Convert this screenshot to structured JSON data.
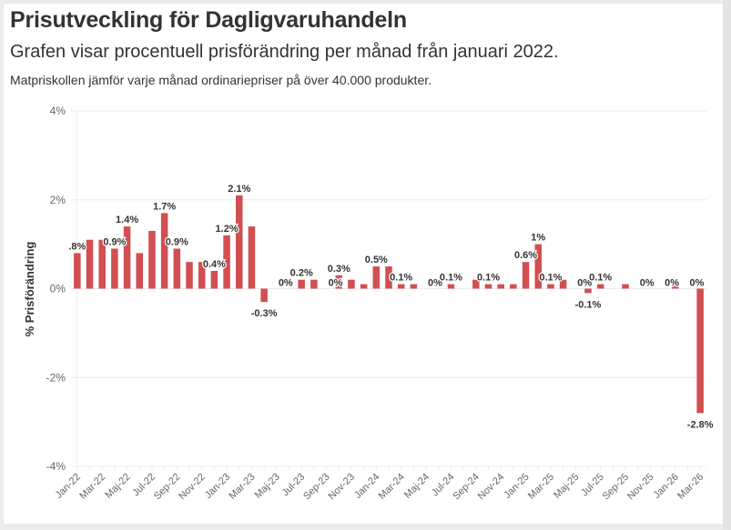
{
  "header": {
    "title": "Prisutveckling för Dagligvaruhandeln",
    "subtitle": "Grafen visar procentuell prisförändring per månad från januari 2022.",
    "note": "Matpriskollen jämför varje månad ordinariepriser på över 40.000 produkter."
  },
  "colors": {
    "bar": "#d14f52",
    "grid": "#ebebeb",
    "text": "#333333",
    "axis_text": "#666666"
  },
  "chart_data": {
    "type": "bar",
    "title": "Prisutveckling för Dagligvaruhandeln",
    "xlabel": "",
    "ylabel": "% Prisförändring",
    "ylim": [
      -4,
      4
    ],
    "yticks": [
      4,
      2,
      0,
      -2,
      -4
    ],
    "ytick_labels": [
      "4%",
      "2%",
      "0%",
      "-2%",
      "-4%"
    ],
    "grid": true,
    "categories": [
      "Jan-22",
      "Feb-22",
      "Mar-22",
      "Apr-22",
      "Maj-22",
      "Jun-22",
      "Jul-22",
      "Aug-22",
      "Sep-22",
      "Okt-22",
      "Nov-22",
      "Dec-22",
      "Jan-23",
      "Feb-23",
      "Mar-23",
      "Apr-23",
      "Maj-23",
      "Jun-23",
      "Jul-23",
      "Aug-23",
      "Sep-23",
      "Okt-23",
      "Nov-23",
      "Dec-23",
      "Jan-24",
      "Feb-24",
      "Mar-24",
      "Apr-24",
      "Maj-24",
      "Jun-24",
      "Jul-24",
      "Aug-24",
      "Sep-24",
      "Okt-24",
      "Nov-24",
      "Dec-24",
      "Jan-25",
      "Feb-25",
      "Mar-25",
      "Apr-25",
      "Maj-25",
      "Jun-25",
      "Jul-25",
      "Aug-25",
      "Sep-25",
      "Okt-25",
      "Nov-25",
      "Dec-25",
      "Jan-26",
      "Feb-26",
      "Mar-26"
    ],
    "xtick_labels": [
      "Jan-22",
      "Mar-22",
      "Maj-22",
      "Jul-22",
      "Sep-22",
      "Nov-22",
      "Jan-23",
      "Mar-23",
      "Maj-23",
      "Jul-23",
      "Sep-23",
      "Nov-23",
      "Jan-24",
      "Mar-24",
      "Maj-24",
      "Jul-24",
      "Sep-24",
      "Nov-24",
      "Jan-25",
      "Mar-25",
      "Maj-25",
      "Jul-25",
      "Sep-25",
      "Nov-25",
      "Jan-26",
      "Mar-26"
    ],
    "values": [
      0.8,
      1.1,
      1.1,
      0.9,
      1.4,
      0.8,
      1.3,
      1.7,
      0.9,
      0.6,
      0.6,
      0.4,
      1.2,
      2.1,
      1.4,
      -0.3,
      0,
      0,
      0.2,
      0.2,
      0,
      0.3,
      0.2,
      0.1,
      0.5,
      0.5,
      0.1,
      0.1,
      0,
      0,
      0.1,
      0,
      0.2,
      0.1,
      0.1,
      0.1,
      0.6,
      1.0,
      0.1,
      0.2,
      0,
      -0.1,
      0.1,
      0,
      0.1,
      0,
      0,
      0,
      0.1,
      0,
      -2.8
    ],
    "data_labels": [
      {
        "index": 0,
        "text": ".8%"
      },
      {
        "index": 3,
        "text": "0.9%"
      },
      {
        "index": 4,
        "text": "1.4%"
      },
      {
        "index": 7,
        "text": "1.7%"
      },
      {
        "index": 8,
        "text": "0.9%"
      },
      {
        "index": 11,
        "text": "0.4%"
      },
      {
        "index": 12,
        "text": "1.2%"
      },
      {
        "index": 13,
        "text": "2.1%"
      },
      {
        "index": 15,
        "text": "-0.3%"
      },
      {
        "index": 16,
        "text": "0%"
      },
      {
        "index": 18,
        "text": "0.2%"
      },
      {
        "index": 20,
        "text": "0%"
      },
      {
        "index": 21,
        "text": "0.3%"
      },
      {
        "index": 24,
        "text": "0.5%"
      },
      {
        "index": 26,
        "text": "0.1%"
      },
      {
        "index": 28,
        "text": "0%"
      },
      {
        "index": 30,
        "text": "0.1%"
      },
      {
        "index": 33,
        "text": "0.1%"
      },
      {
        "index": 36,
        "text": "0.6%"
      },
      {
        "index": 37,
        "text": "1%"
      },
      {
        "index": 38,
        "text": "0.1%"
      },
      {
        "index": 40,
        "text": "0%"
      },
      {
        "index": 41,
        "text": "-0.1%"
      },
      {
        "index": 42,
        "text": "0.1%"
      },
      {
        "index": 45,
        "text": "0%"
      },
      {
        "index": 47,
        "text": "0%"
      },
      {
        "index": 49,
        "text": "0%"
      },
      {
        "index": 50,
        "text": "-2.8%"
      }
    ]
  }
}
